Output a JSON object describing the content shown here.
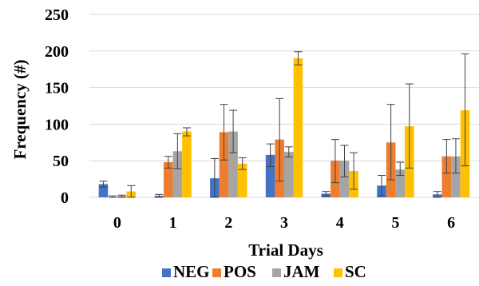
{
  "chart_data": {
    "type": "bar",
    "title": "",
    "xlabel": "Trial Days",
    "ylabel": "Frequency (#)",
    "ylim": [
      0,
      250
    ],
    "yticks": [
      0,
      50,
      100,
      150,
      200,
      250
    ],
    "categories": [
      "0",
      "1",
      "2",
      "3",
      "4",
      "5",
      "6"
    ],
    "grid": true,
    "legend_position": "bottom",
    "series": [
      {
        "name": "NEG",
        "color": "#4472C4",
        "values": [
          18,
          2,
          26,
          58,
          5,
          16,
          4
        ],
        "error_low": [
          14,
          0,
          0,
          42,
          2,
          2,
          0
        ],
        "error_high": [
          22,
          4,
          53,
          73,
          8,
          30,
          8
        ]
      },
      {
        "name": "POS",
        "color": "#ED7D31",
        "values": [
          0,
          48,
          89,
          79,
          50,
          75,
          56
        ],
        "error_low": [
          0,
          40,
          51,
          22,
          20,
          24,
          33
        ],
        "error_high": [
          2,
          56,
          127,
          135,
          79,
          127,
          79
        ]
      },
      {
        "name": "JAM",
        "color": "#A5A5A5",
        "values": [
          2,
          63,
          90,
          62,
          50,
          38,
          56
        ],
        "error_low": [
          0,
          39,
          61,
          55,
          28,
          30,
          33
        ],
        "error_high": [
          3,
          87,
          119,
          69,
          71,
          48,
          80
        ]
      },
      {
        "name": "SC",
        "color": "#FFC000",
        "values": [
          8,
          90,
          46,
          190,
          36,
          97,
          119
        ],
        "error_low": [
          0,
          84,
          38,
          181,
          11,
          40,
          43
        ],
        "error_high": [
          16,
          95,
          54,
          199,
          61,
          155,
          196
        ]
      }
    ]
  }
}
